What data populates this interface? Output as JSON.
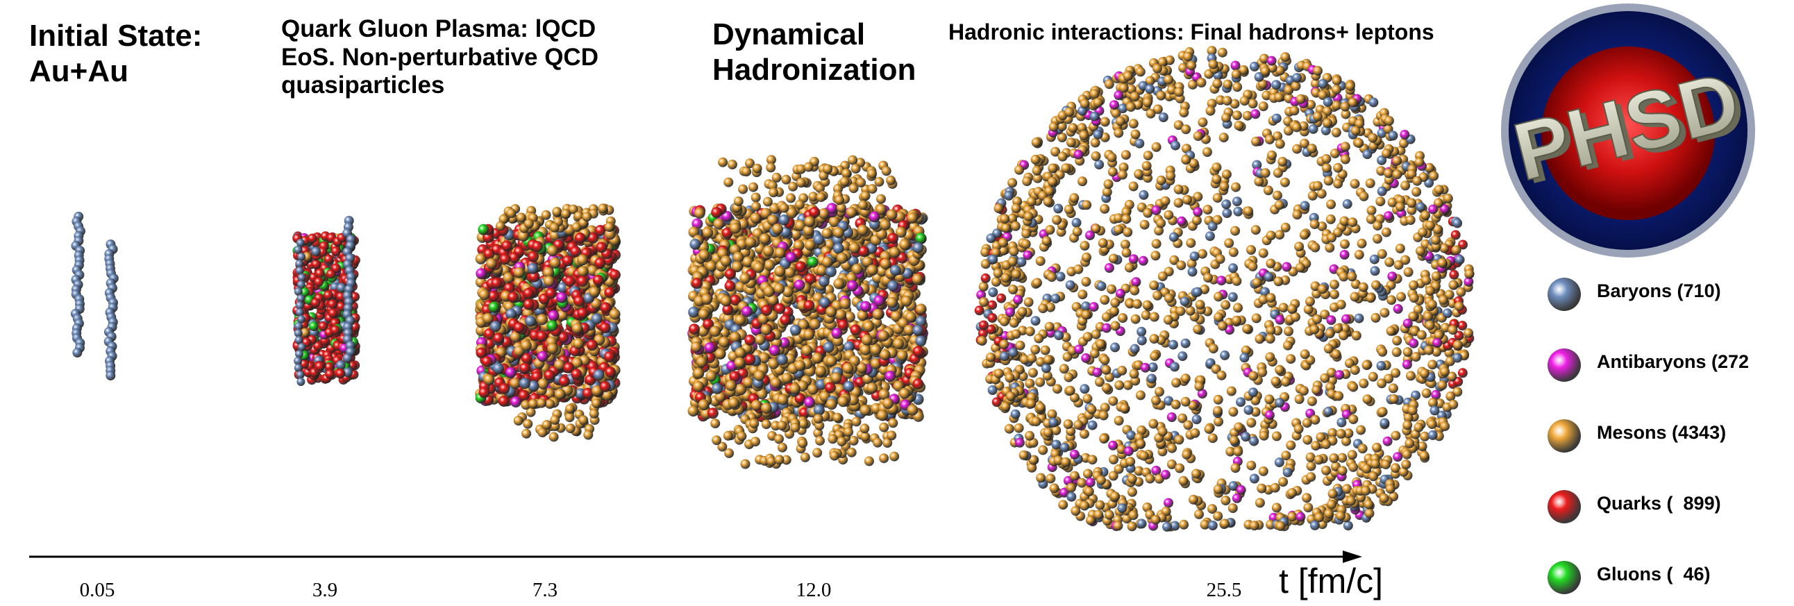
{
  "stages": [
    {
      "title": "Initial State:\nAu+Au",
      "time": "0.05"
    },
    {
      "title": "Quark Gluon Plasma: lQCD\nEoS. Non-perturbative QCD\nquasiparticles",
      "time": "3.9"
    },
    {
      "title": "",
      "time": "7.3"
    },
    {
      "title": "Dynamical\nHadronization",
      "time": "12.0"
    },
    {
      "title": "Hadronic interactions: Final hadrons+ leptons",
      "time": "25.5"
    }
  ],
  "axis": {
    "label": "t [fm/c]"
  },
  "logo": {
    "text": "PHSD"
  },
  "legend": [
    {
      "label": "Baryons (710)",
      "color": "#6f8fc0"
    },
    {
      "label": "Antibaryons (272",
      "color": "#ee1fe6"
    },
    {
      "label": "Mesons (4343)",
      "color": "#f0a93a"
    },
    {
      "label": "Quarks (  899)",
      "color": "#ee1c1c"
    },
    {
      "label": "Gluons (  46)",
      "color": "#22dd22"
    }
  ]
}
